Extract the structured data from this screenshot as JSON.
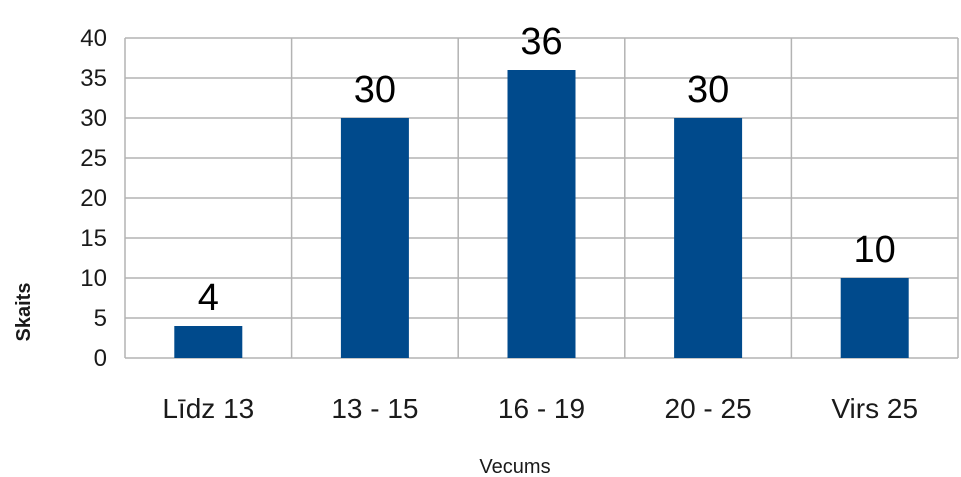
{
  "chart_data": {
    "type": "bar",
    "categories": [
      "Līdz 13",
      "13 - 15",
      "16 - 19",
      "20 - 25",
      "Virs 25"
    ],
    "values": [
      4,
      30,
      36,
      30,
      10
    ],
    "data_labels": [
      "4",
      "30",
      "36",
      "30",
      "10"
    ],
    "title": "",
    "xlabel": "Vecums",
    "ylabel": "Skaits",
    "ylim": [
      0,
      40
    ],
    "ytick_step": 5,
    "grid": true,
    "legend": "none",
    "bar_color": "#004a8c",
    "grid_color": "#b3b3b3"
  }
}
